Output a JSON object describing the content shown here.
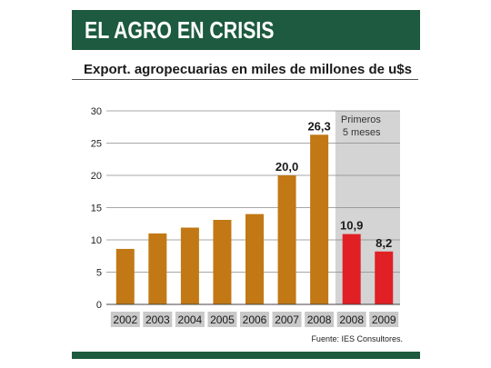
{
  "header": {
    "title": "EL AGRO EN CRISIS"
  },
  "subtitle": "Export. agropecuarias en miles de millones de u$s",
  "source": "Fuente: IES Consultores.",
  "colors": {
    "banner": "#1d5a3f",
    "bar_year": "#c27814",
    "bar_partial": "#e02025",
    "shade": "#d4d4d4"
  },
  "chart_data": {
    "type": "bar",
    "categories": [
      "2002",
      "2003",
      "2004",
      "2005",
      "2006",
      "2007",
      "2008",
      "2008",
      "2009"
    ],
    "values": [
      8.6,
      11.0,
      11.9,
      13.1,
      14.0,
      20.0,
      26.3,
      10.9,
      8.2
    ],
    "data_labels": [
      "",
      "",
      "",
      "",
      "",
      "20,0",
      "26,3",
      "10,9",
      "8,2"
    ],
    "ylim": [
      0,
      30
    ],
    "yticks": [
      0,
      5,
      10,
      15,
      20,
      25,
      30
    ],
    "grid": true,
    "highlight": {
      "note_line1": "Primeros",
      "note_line2": "5 meses",
      "categories": [
        "2008",
        "2009"
      ]
    }
  }
}
